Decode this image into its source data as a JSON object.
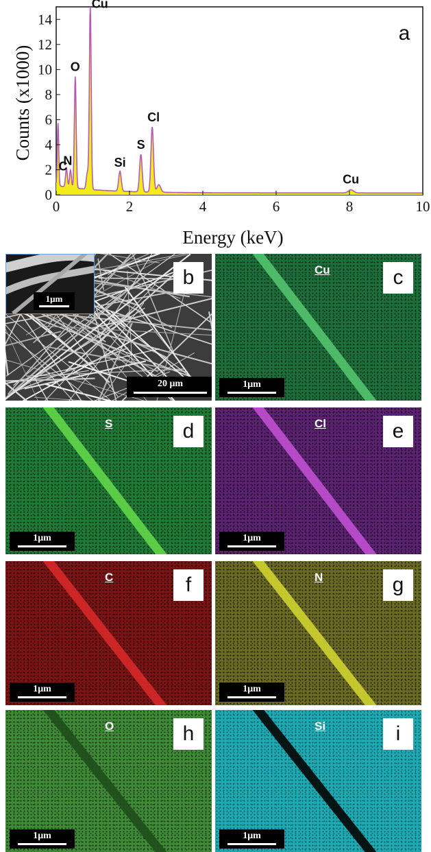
{
  "chart_data": {
    "type": "line",
    "panel_letter": "a",
    "xlabel": "Energy (keV)",
    "ylabel": "Counts (x1000)",
    "xlim": [
      0,
      10
    ],
    "ylim": [
      0,
      15
    ],
    "xticks": [
      0,
      2,
      4,
      6,
      8,
      10
    ],
    "yticks": [
      0,
      2,
      4,
      6,
      8,
      10,
      12,
      14
    ],
    "grid": false,
    "line_color": "#b65ab8",
    "fill_color": "#f2ec1a",
    "peaks": [
      {
        "label": "C",
        "x": 0.28,
        "y": 1.5
      },
      {
        "label": "N",
        "x": 0.39,
        "y": 1.4
      },
      {
        "label": "O",
        "x": 0.52,
        "y": 8.9
      },
      {
        "label": "Cu",
        "x": 0.93,
        "y": 14.8
      },
      {
        "label": "Si",
        "x": 1.74,
        "y": 1.6
      },
      {
        "label": "S",
        "x": 2.31,
        "y": 3.0
      },
      {
        "label": "Cl",
        "x": 2.62,
        "y": 5.2
      },
      {
        "label": "Cu",
        "x": 8.04,
        "y": 0.25
      }
    ]
  },
  "panels": [
    {
      "letter": "b",
      "type": "sem",
      "scale_label": "20 μm",
      "inset_scale_label": "1μm"
    },
    {
      "letter": "c",
      "element": "Cu",
      "scale_label": "1μm",
      "bg": "#1d6e3a",
      "speck": "#0a2d16",
      "stripe": "#54c46f"
    },
    {
      "letter": "d",
      "element": "S",
      "scale_label": "1μm",
      "bg": "#1f7a35",
      "speck": "#0a2a12",
      "stripe": "#62d64a"
    },
    {
      "letter": "e",
      "element": "Cl",
      "scale_label": "1μm",
      "bg": "#5b2270",
      "speck": "#1e0a28",
      "stripe": "#c04fd2"
    },
    {
      "letter": "f",
      "element": "C",
      "scale_label": "1μm",
      "bg": "#7a1414",
      "speck": "#2e0606",
      "stripe": "#d82828"
    },
    {
      "letter": "g",
      "element": "N",
      "scale_label": "1μm",
      "bg": "#6a6a24",
      "speck": "#23230a",
      "stripe": "#cfd430"
    },
    {
      "letter": "h",
      "element": "O",
      "scale_label": "1μm",
      "bg": "#3f8a36",
      "speck": "#163312",
      "stripe": "#1f4e1c"
    },
    {
      "letter": "i",
      "element": "Si",
      "scale_label": "1μm",
      "bg": "#1fa9b3",
      "speck": "#0d5b60",
      "stripe": "#050505"
    }
  ]
}
